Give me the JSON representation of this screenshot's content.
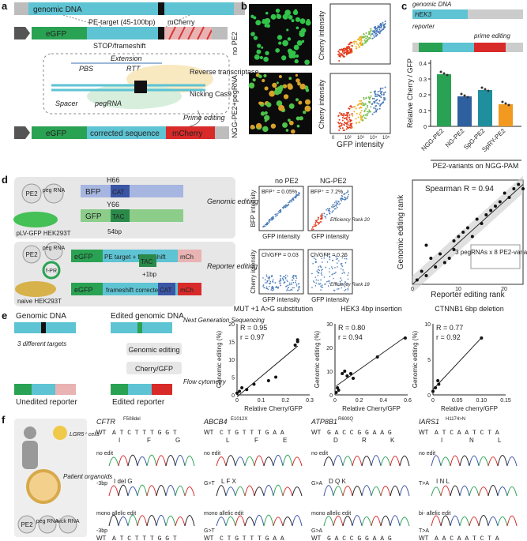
{
  "panels": {
    "a": "a",
    "b": "b",
    "c": "c",
    "d": "d",
    "e": "e",
    "f": "f"
  },
  "a": {
    "genomic_dna": "genomic DNA",
    "egfp": "eGFP",
    "target": "PE-target (45-100bp)",
    "stop": "STOP/frameshift",
    "mcherry": "mCherry",
    "extension": "Extension",
    "pbs": "PBS",
    "rtt": "RTT",
    "rt": "Reverse transcriptase",
    "nick": "Nicking Cas9",
    "spacer": "Spacer",
    "pegrna": "pegRNA",
    "prime": "Prime editing",
    "corrected": "corrected sequence",
    "egfp2": "eGFP",
    "mcherry2": "mCherry"
  },
  "b": {
    "no_pe2": "no PE2",
    "ngpe2": "NGG-PE2+pegRNA",
    "ylabel": "Cherry intensity",
    "xlabel": "GFP intensity",
    "ticks": [
      "0",
      "10²",
      "10³",
      "10⁴",
      "10⁵"
    ]
  },
  "c": {
    "hek3": "HEK3",
    "genomic": "genomic DNA",
    "reporter": "reporter",
    "prime": "prime editing",
    "ylabel": "Relative Cherry / GFP",
    "xlabel": "PE2-variants on NGG-PAM",
    "yticks": [
      "0",
      "0.1",
      "0.2",
      "0.3",
      "0.4"
    ]
  },
  "chart_data": [
    {
      "type": "bar",
      "title": "",
      "categories": [
        "NGG-PE2",
        "NG-PE2",
        "SpG-PE2",
        "SpRY-PE2"
      ],
      "values": [
        0.33,
        0.19,
        0.23,
        0.14
      ],
      "colors": [
        "#2aa253",
        "#2e5f9e",
        "#1f8f9e",
        "#f29a1f"
      ],
      "ylim": [
        0,
        0.4
      ],
      "ylabel": "Relative Cherry / GFP",
      "xlabel": "PE2-variants on NGG-PAM"
    },
    {
      "type": "scatter",
      "title": "Spearman R = 0.94",
      "xlabel": "Reporter editing rank",
      "ylabel": "Genomic editing rank",
      "xlim": [
        0,
        24
      ],
      "ylim": [
        0,
        24
      ],
      "x": [
        1,
        2,
        3,
        3,
        4,
        5,
        6,
        7,
        8,
        9,
        9,
        10,
        11,
        12,
        13,
        14,
        15,
        16,
        17,
        18,
        19,
        20,
        21,
        22,
        23,
        24
      ],
      "y": [
        1,
        3,
        2,
        9,
        6,
        4,
        7,
        5,
        6,
        8,
        10,
        11,
        12,
        13,
        11,
        15,
        14,
        16,
        17,
        18,
        19,
        21,
        20,
        22,
        23,
        22
      ]
    },
    {
      "type": "scatter",
      "title": "MUT +1 A>G substitution",
      "xlabel": "Relative Cherry/GFP",
      "ylabel": "Genomic editing (%)",
      "xlim": [
        0,
        0.3
      ],
      "ylim": [
        0,
        20
      ],
      "x": [
        0.0,
        0.01,
        0.02,
        0.04,
        0.07,
        0.13,
        0.16,
        0.24,
        0.25,
        0.25
      ],
      "y": [
        0.5,
        1,
        2,
        1.5,
        3,
        4,
        5,
        14,
        15,
        15.5
      ]
    },
    {
      "type": "scatter",
      "title": "HEK3 4bp insertion",
      "xlabel": "Relative Cherry/GFP",
      "ylabel": "Genomic editing (%)",
      "xlim": [
        0,
        0.6
      ],
      "ylim": [
        0,
        30
      ],
      "x": [
        0.01,
        0.02,
        0.03,
        0.06,
        0.08,
        0.1,
        0.13,
        0.15,
        0.35,
        0.58
      ],
      "y": [
        1,
        3,
        2,
        9,
        10,
        8,
        9,
        7,
        16,
        24
      ]
    },
    {
      "type": "scatter",
      "title": "CTNNB1 6bp deletion",
      "xlabel": "Relative cherry/GFP",
      "ylabel": "Genomic editing (%)",
      "xlim": [
        0,
        0.15
      ],
      "ylim": [
        0,
        10
      ],
      "x": [
        0.0,
        0.005,
        0.01,
        0.012,
        0.1
      ],
      "y": [
        0.5,
        1,
        2,
        1.5,
        8
      ]
    }
  ],
  "d": {
    "pe2": "PE2",
    "peg": "peg RNA",
    "h66": "H66",
    "bfp": "BFP",
    "cat": "CAT",
    "y66": "Y66",
    "gfp": "GFP",
    "tac": "TAC",
    "bp54": "54bp",
    "cell1": "pLV-GFP HEK293T",
    "genomic_editing": "Genomic editing",
    "pe2b": "PE2",
    "pegb": "peg RNA",
    "fpr": "f-PR",
    "egfp": "eGFP",
    "target": "PE target + frameshift",
    "tac2": "TAC",
    "mch": "mCh",
    "bp1": "+1bp",
    "egfp2": "eGFP",
    "corr": "frameshift corrected",
    "cat2": "CAT",
    "mch2": "mCh",
    "cell2": "naive HEK293T",
    "reporter_editing": "Reporter editing",
    "nope2": "no PE2",
    "ngpe2": "NG-PE2",
    "bfp_a": "BFP⁺ = 0.05%",
    "bfp_b": "BFP⁺ = 7.2%",
    "eff20": "Efficiency Rank 20",
    "ch_a": "Ch/GFP = 0.03",
    "ch_b": "Ch/GFP = 0.26",
    "eff18": "Efficiency Rank 18",
    "bfp_int": "BFP intensity",
    "gfp_int": "GFP intensity",
    "ch_int": "Cherry intensity",
    "spearman": "Spearman R = 0.94",
    "legend": "3 pegRNAs x 8 PE2-variants",
    "xlabel": "Reporter editing rank",
    "ylabel": "Genomic editing rank",
    "ticks": [
      "0",
      "10",
      "20"
    ]
  },
  "e": {
    "genomic": "Genomic DNA",
    "edited_genomic": "Edited genomic DNA",
    "targets": "3 different targets",
    "unedited": "Unedited reporter",
    "edited": "Edited reporter",
    "ngs": "Next Generation Sequencing",
    "ge": "Genomic editing",
    "cg": "Cherry/GFP",
    "flow": "Flow cytometry",
    "p1": {
      "title": "MUT +1 A>G substitution",
      "R": "R = 0.95",
      "r": "r = 0.97",
      "xticks": [
        "0",
        "0.1",
        "0.2",
        "0.3"
      ],
      "yticks": [
        "0",
        "5",
        "10",
        "15",
        "20"
      ]
    },
    "p2": {
      "title": "HEK3 4bp insertion",
      "R": "R = 0.80",
      "r": "r = 0.94",
      "xticks": [
        "0",
        "0.2",
        "0.4",
        "0.6"
      ],
      "yticks": [
        "0",
        "10",
        "20",
        "30"
      ]
    },
    "p3": {
      "title": "CTNNB1 6bp deletion",
      "R": "R = 0.77",
      "r": "r = 0.92",
      "xticks": [
        "0",
        "0.05",
        "0.10",
        "0.15"
      ],
      "yticks": [
        "0",
        "5",
        "10"
      ]
    },
    "ylabel": "Genomic editing (%)",
    "xlabel": "Relative Cherry/GFP",
    "xlabel3": "Relative cherry/GFP"
  },
  "f": {
    "lgr5": "LGR5⁺ cells",
    "organoids": "Patient organoids",
    "pe2": "PE2",
    "peg": "peg RNA",
    "nick": "nick RNA",
    "genes": [
      {
        "name": "CFTR",
        "sup": "F508del",
        "wt": "A T C T T T G G T",
        "aa": [
          "I",
          "F",
          "G"
        ],
        "r1": "no edit",
        "r2": "-3bp",
        "r2seq": "I  del  G",
        "r3": "mono allelic edit",
        "r3b": "-3bp",
        "bottom": "A T C T T T G G T"
      },
      {
        "name": "ABCB4",
        "sup": "E1012X",
        "wt": "C T G T T T G A A",
        "aa": [
          "L",
          "F",
          "E"
        ],
        "r1": "no edit",
        "r2": "G>T",
        "r2seq": "L  F  X",
        "r3": "mono allelic edit",
        "r3b": "G>T",
        "bottom": "C T G T T T G A A"
      },
      {
        "name": "ATP8B1",
        "sup": "R600Q",
        "wt": "G A C C G G A A G",
        "aa": [
          "D",
          "R",
          "K"
        ],
        "r1": "no edit",
        "r2": "G>A",
        "r2seq": "D  Q  K",
        "r3": "mono allelic edit",
        "r3b": "G>A",
        "bottom": "G A C C G G A A G"
      },
      {
        "name": "IARS1",
        "sup": "H1174>N",
        "wt": "A T C A A T C T A",
        "aa": [
          "I",
          "N",
          "L"
        ],
        "r1": "no edit",
        "r2": "T>A",
        "r2seq": "I  N  L",
        "r3": "bi- allelic edit",
        "r3b": "T>A",
        "bottom": "A A C A A T C T A"
      }
    ],
    "wt_label": "WT"
  }
}
